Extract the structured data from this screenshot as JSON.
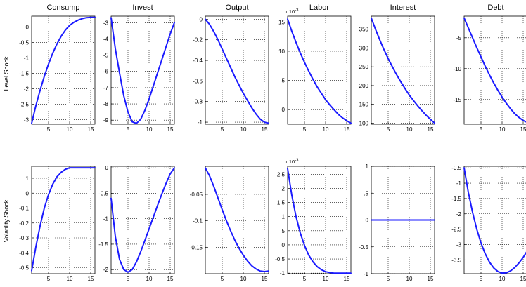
{
  "figure": {
    "row_labels": [
      "Level Shock",
      "Volatility Shock"
    ]
  },
  "chart_data": [
    {
      "type": "line",
      "title": "Consump",
      "ylabel": "Level Shock",
      "xlim": [
        1,
        16
      ],
      "ylim": [
        -3.15,
        0.35
      ],
      "xticks": [
        5,
        10,
        15
      ],
      "yticks": [
        -3,
        -2.5,
        -2,
        -1.5,
        -1,
        -0.5,
        0
      ],
      "grid": true,
      "exponent": "",
      "series": [
        {
          "x": [
            1,
            2,
            3,
            4,
            5,
            6,
            7,
            8,
            9,
            10,
            11,
            12,
            13,
            14,
            15,
            16
          ],
          "values": [
            -3.12,
            -2.55,
            -2.05,
            -1.6,
            -1.2,
            -0.85,
            -0.55,
            -0.3,
            -0.1,
            0.05,
            0.15,
            0.22,
            0.27,
            0.3,
            0.31,
            0.31
          ]
        }
      ]
    },
    {
      "type": "line",
      "title": "Invest",
      "ylabel": "",
      "xlim": [
        1,
        16
      ],
      "ylim": [
        -9.25,
        -2.6
      ],
      "xticks": [
        5,
        10,
        15
      ],
      "yticks": [
        -9,
        -8,
        -7,
        -6,
        -5,
        -4,
        -3
      ],
      "grid": true,
      "exponent": "",
      "series": [
        {
          "x": [
            1,
            2,
            3,
            4,
            5,
            6,
            7,
            8,
            9,
            10,
            11,
            12,
            13,
            14,
            15,
            16
          ],
          "values": [
            -2.7,
            -4.6,
            -6.1,
            -7.5,
            -8.5,
            -9.1,
            -9.2,
            -8.95,
            -8.4,
            -7.7,
            -6.9,
            -6.1,
            -5.3,
            -4.5,
            -3.7,
            -3.0
          ]
        }
      ]
    },
    {
      "type": "line",
      "title": "Output",
      "ylabel": "",
      "xlim": [
        1,
        16
      ],
      "ylim": [
        -1.02,
        0.03
      ],
      "xticks": [
        5,
        10,
        15
      ],
      "yticks": [
        -1,
        -0.8,
        -0.6,
        -0.4,
        -0.2,
        0
      ],
      "grid": true,
      "exponent": "",
      "series": [
        {
          "x": [
            1,
            2,
            3,
            4,
            5,
            6,
            7,
            8,
            9,
            10,
            11,
            12,
            13,
            14,
            15,
            16
          ],
          "values": [
            0,
            -0.05,
            -0.12,
            -0.2,
            -0.29,
            -0.38,
            -0.47,
            -0.56,
            -0.64,
            -0.72,
            -0.79,
            -0.86,
            -0.92,
            -0.97,
            -1.0,
            -1.01
          ]
        }
      ]
    },
    {
      "type": "line",
      "title": "Labor",
      "ylabel": "",
      "xlim": [
        1,
        16
      ],
      "ylim": [
        -2.5,
        16
      ],
      "xticks": [
        5,
        10,
        15
      ],
      "yticks": [
        0,
        5,
        10,
        15
      ],
      "grid": true,
      "exponent": "-3",
      "series": [
        {
          "x": [
            1,
            2,
            3,
            4,
            5,
            6,
            7,
            8,
            9,
            10,
            11,
            12,
            13,
            14,
            15,
            16
          ],
          "values": [
            15.5,
            13.4,
            11.5,
            9.7,
            8.1,
            6.6,
            5.2,
            3.9,
            2.8,
            1.7,
            0.8,
            0,
            -0.8,
            -1.4,
            -1.9,
            -2.3
          ]
        }
      ]
    },
    {
      "type": "line",
      "title": "Interest",
      "ylabel": "",
      "xlim": [
        1,
        16
      ],
      "ylim": [
        97,
        385
      ],
      "xticks": [
        5,
        10,
        15
      ],
      "yticks": [
        100,
        150,
        200,
        250,
        300,
        350
      ],
      "grid": true,
      "exponent": "",
      "series": [
        {
          "x": [
            1,
            2,
            3,
            4,
            5,
            6,
            7,
            8,
            9,
            10,
            11,
            12,
            13,
            14,
            15,
            16
          ],
          "values": [
            380,
            350,
            322,
            296,
            272,
            250,
            229,
            210,
            192,
            175,
            160,
            146,
            133,
            121,
            110,
            100
          ]
        }
      ]
    },
    {
      "type": "line",
      "title": "Debt",
      "ylabel": "",
      "xlim": [
        1,
        16
      ],
      "ylim": [
        -19,
        -1.5
      ],
      "xticks": [
        5,
        10,
        15
      ],
      "yticks": [
        -15,
        -10,
        -5
      ],
      "grid": true,
      "exponent": "",
      "series": [
        {
          "x": [
            1,
            2,
            3,
            4,
            5,
            6,
            7,
            8,
            9,
            10,
            11,
            12,
            13,
            14,
            15,
            16
          ],
          "values": [
            -1.8,
            -3.4,
            -5.0,
            -6.6,
            -8.1,
            -9.6,
            -11.0,
            -12.3,
            -13.5,
            -14.6,
            -15.6,
            -16.5,
            -17.3,
            -17.9,
            -18.4,
            -18.7
          ]
        }
      ]
    },
    {
      "type": "line",
      "title": "",
      "ylabel": "Volatility Shock",
      "xlim": [
        1,
        16
      ],
      "ylim": [
        -0.54,
        0.18
      ],
      "xticks": [
        5,
        10,
        15
      ],
      "yticks": [
        -0.5,
        -0.4,
        -0.3,
        -0.2,
        -0.1,
        0,
        0.1
      ],
      "grid": true,
      "exponent": "",
      "series": [
        {
          "x": [
            1,
            2,
            3,
            4,
            5,
            6,
            7,
            8,
            9,
            10,
            11,
            12,
            13,
            14,
            15,
            16
          ],
          "values": [
            -0.52,
            -0.36,
            -0.22,
            -0.1,
            -0.01,
            0.06,
            0.11,
            0.14,
            0.16,
            0.17,
            0.17,
            0.17,
            0.17,
            0.17,
            0.17,
            0.17
          ]
        }
      ]
    },
    {
      "type": "line",
      "title": "",
      "ylabel": "",
      "xlim": [
        1,
        16
      ],
      "ylim": [
        -2.08,
        0.03
      ],
      "xticks": [
        5,
        10,
        15
      ],
      "yticks": [
        -2,
        -1.5,
        -1,
        -0.5,
        0
      ],
      "grid": true,
      "exponent": "",
      "series": [
        {
          "x": [
            1,
            2,
            3,
            4,
            5,
            6,
            7,
            8,
            9,
            10,
            11,
            12,
            13,
            14,
            15,
            16
          ],
          "values": [
            -0.6,
            -1.35,
            -1.8,
            -2.0,
            -2.05,
            -2.0,
            -1.85,
            -1.65,
            -1.43,
            -1.2,
            -0.97,
            -0.74,
            -0.52,
            -0.31,
            -0.12,
            0.0
          ]
        }
      ]
    },
    {
      "type": "line",
      "title": "",
      "ylabel": "",
      "xlim": [
        1,
        16
      ],
      "ylim": [
        -0.2,
        0.003
      ],
      "xticks": [
        5,
        10,
        15
      ],
      "yticks": [
        -0.15,
        -0.1,
        -0.05
      ],
      "grid": true,
      "exponent": "",
      "series": [
        {
          "x": [
            1,
            2,
            3,
            4,
            5,
            6,
            7,
            8,
            9,
            10,
            11,
            12,
            13,
            14,
            15,
            16
          ],
          "values": [
            0,
            -0.015,
            -0.035,
            -0.057,
            -0.079,
            -0.1,
            -0.119,
            -0.137,
            -0.152,
            -0.165,
            -0.176,
            -0.185,
            -0.191,
            -0.195,
            -0.196,
            -0.195
          ]
        }
      ]
    },
    {
      "type": "line",
      "title": "",
      "ylabel": "",
      "xlim": [
        1,
        16
      ],
      "ylim": [
        -1.02,
        2.78
      ],
      "xticks": [
        5,
        10,
        15
      ],
      "yticks": [
        -1,
        -0.5,
        0,
        0.5,
        1,
        1.5,
        2,
        2.5
      ],
      "grid": true,
      "exponent": "-3",
      "series": [
        {
          "x": [
            1,
            2,
            3,
            4,
            5,
            6,
            7,
            8,
            9,
            10,
            11,
            12,
            13,
            14,
            15,
            16
          ],
          "values": [
            2.7,
            1.75,
            1.0,
            0.42,
            -0.02,
            -0.36,
            -0.6,
            -0.77,
            -0.88,
            -0.95,
            -0.98,
            -1.0,
            -1.0,
            -1.0,
            -1.0,
            -1.0
          ]
        }
      ]
    },
    {
      "type": "line",
      "title": "",
      "ylabel": "",
      "xlim": [
        1,
        16
      ],
      "ylim": [
        -1,
        1
      ],
      "xticks": [
        5,
        10,
        15
      ],
      "yticks": [
        -1,
        -0.5,
        0,
        0.5,
        1
      ],
      "grid": true,
      "exponent": "",
      "series": [
        {
          "x": [
            1,
            2,
            3,
            4,
            5,
            6,
            7,
            8,
            9,
            10,
            11,
            12,
            13,
            14,
            15,
            16
          ],
          "values": [
            0,
            0,
            0,
            0,
            0,
            0,
            0,
            0,
            0,
            0,
            0,
            0,
            0,
            0,
            0,
            0
          ]
        }
      ]
    },
    {
      "type": "line",
      "title": "",
      "ylabel": "",
      "xlim": [
        1,
        16
      ],
      "ylim": [
        -3.95,
        -0.45
      ],
      "xticks": [
        5,
        10,
        15
      ],
      "yticks": [
        -3.5,
        -3,
        -2.5,
        -2,
        -1.5,
        -1,
        -0.5
      ],
      "grid": true,
      "exponent": "",
      "series": [
        {
          "x": [
            1,
            2,
            3,
            4,
            5,
            6,
            7,
            8,
            9,
            10,
            11,
            12,
            13,
            14,
            15,
            16
          ],
          "values": [
            -0.5,
            -1.3,
            -1.95,
            -2.5,
            -2.95,
            -3.3,
            -3.57,
            -3.76,
            -3.88,
            -3.93,
            -3.92,
            -3.86,
            -3.75,
            -3.6,
            -3.42,
            -3.2
          ]
        }
      ]
    }
  ]
}
